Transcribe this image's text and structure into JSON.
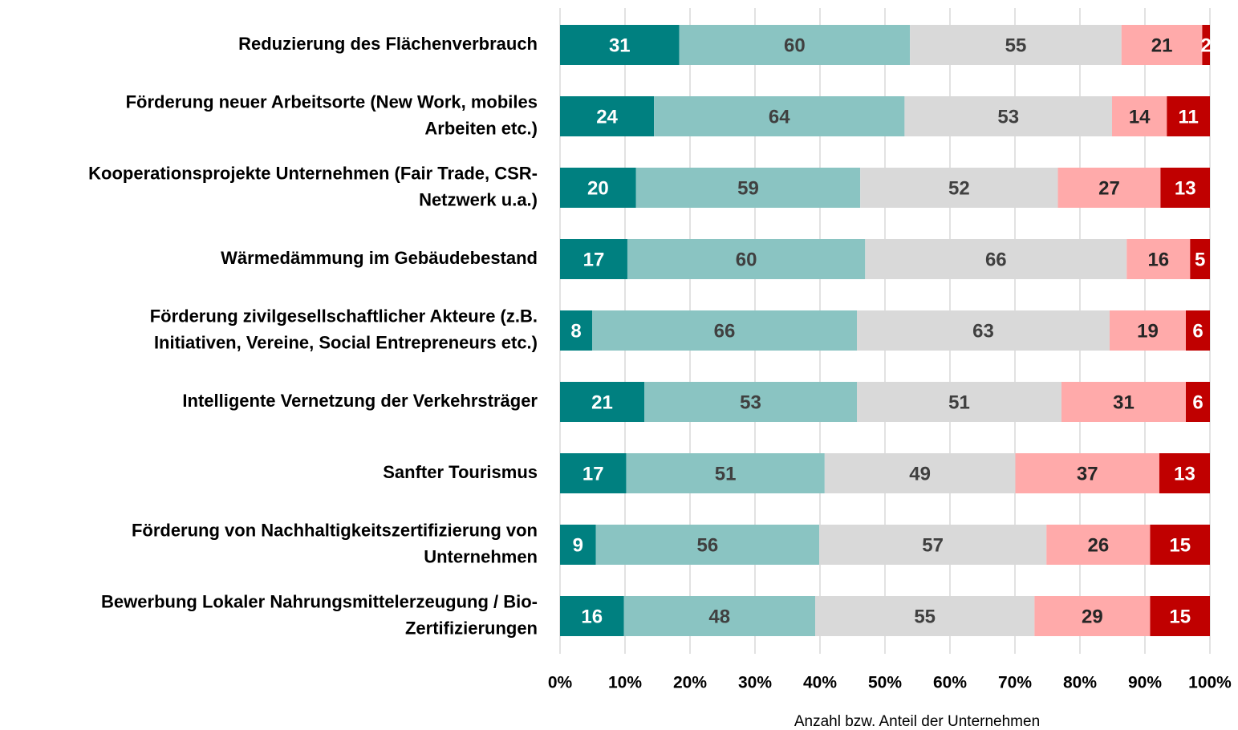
{
  "chart_data": {
    "type": "bar_stacked_percent_horizontal",
    "categories": [
      [
        "Reduzierung des Flächenverbrauch"
      ],
      [
        "Förderung neuer Arbeitsorte (New Work, mobiles",
        "Arbeiten etc.)"
      ],
      [
        "Kooperationsprojekte Unternehmen (Fair Trade, CSR-",
        "Netzwerk u.a.)"
      ],
      [
        "Wärmedämmung im Gebäudebestand"
      ],
      [
        "Förderung zivilgesellschaftlicher Akteure (z.B.",
        "Initiativen, Vereine, Social Entrepreneurs etc.)"
      ],
      [
        "Intelligente Vernetzung der Verkehrsträger"
      ],
      [
        "Sanfter Tourismus"
      ],
      [
        "Förderung von Nachhaltigkeitszertifizierung von",
        "Unternehmen"
      ],
      [
        "Bewerbung Lokaler Nahrungsmittelerzeugung / Bio-",
        "Zertifizierungen"
      ]
    ],
    "series": [
      {
        "color": "#008080",
        "label_color": "#ffffff",
        "values": [
          31,
          24,
          20,
          17,
          8,
          21,
          17,
          9,
          16
        ]
      },
      {
        "color": "#8ac4c2",
        "label_color": "#404040",
        "values": [
          60,
          64,
          59,
          60,
          66,
          53,
          51,
          56,
          48
        ]
      },
      {
        "color": "#d9d9d9",
        "label_color": "#404040",
        "values": [
          55,
          53,
          52,
          66,
          63,
          51,
          49,
          57,
          55
        ]
      },
      {
        "color": "#ffaaaa",
        "label_color": "#262626",
        "values": [
          21,
          14,
          27,
          16,
          19,
          31,
          37,
          26,
          29
        ]
      },
      {
        "color": "#c00000",
        "label_color": "#ffffff",
        "values": [
          2,
          11,
          13,
          5,
          6,
          6,
          13,
          15,
          15
        ]
      }
    ],
    "xlim": [
      0,
      100
    ],
    "xticks": [
      {
        "value": 0,
        "label": "0%"
      },
      {
        "value": 10,
        "label": "10%"
      },
      {
        "value": 20,
        "label": "20%"
      },
      {
        "value": 30,
        "label": "30%"
      },
      {
        "value": 40,
        "label": "40%"
      },
      {
        "value": 50,
        "label": "50%"
      },
      {
        "value": 60,
        "label": "60%"
      },
      {
        "value": 70,
        "label": "70%"
      },
      {
        "value": 80,
        "label": "80%"
      },
      {
        "value": 90,
        "label": "90%"
      },
      {
        "value": 100,
        "label": "100%"
      }
    ],
    "x_label": "Anzahl bzw. Anteil der Unternehmen",
    "grid": true
  }
}
